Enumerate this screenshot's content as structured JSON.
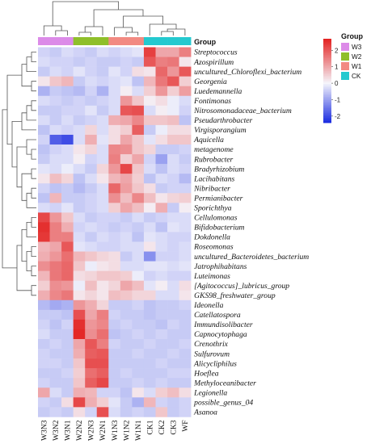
{
  "chart_data": {
    "type": "heatmap",
    "columns": [
      "W3N3",
      "W3N2",
      "W3N1",
      "W2N2",
      "W2N3",
      "W2N1",
      "W1N3",
      "W1N2",
      "W1N1",
      "CK1",
      "CK2",
      "CK3",
      "WF"
    ],
    "rows": [
      "Streptococcus",
      "Azospirillum",
      "uncultured_Chloroflexi_bacterium",
      "Georgenia",
      "Luedemannella",
      "Fontimonas",
      "Nitrosomonadaceae_bacterium",
      "Pseudarthrobacter",
      "Virgisporangium",
      "Aquicella",
      "metagenome",
      "Rubrobacter",
      "Bradyrhizobium",
      "Lacihabitans",
      "Nibribacter",
      "Permianibacter",
      "Sporichthya",
      "Cellulomonas",
      "Bifidobacterium",
      "Dokdonella",
      "Roseomonas",
      "uncultured_Bacteroidetes_bacterium",
      "Jatrophihabitans",
      "Luteimonas",
      "[Agitococcus]_lubricus_group",
      "GKS98_freshwater_group",
      "Ideonella",
      "Catellatospora",
      "Immundisolibacter",
      "Capnocytophaga",
      "Crenothrix",
      "Sulfurovum",
      "Alicycliphilus",
      "Hoeflea",
      "Methyloceanibacter",
      "Legionella",
      "possible_genus_04",
      "Asanoa"
    ],
    "values": [
      [
        -0.4,
        -0.5,
        -0.3,
        -0.4,
        -0.5,
        -0.3,
        -0.4,
        -0.3,
        -0.2,
        2.3,
        1.0,
        1.0,
        1.5
      ],
      [
        -0.3,
        -0.4,
        -0.4,
        -0.5,
        -0.4,
        -0.5,
        -0.5,
        -0.4,
        -0.5,
        2.0,
        1.5,
        1.6,
        0.2
      ],
      [
        -0.5,
        -0.3,
        -0.4,
        -0.2,
        -0.4,
        -0.5,
        -0.2,
        -0.4,
        0.3,
        0.2,
        1.8,
        1.2,
        2.0
      ],
      [
        0.2,
        0.6,
        0.8,
        -0.5,
        -0.3,
        -0.4,
        -0.3,
        -0.2,
        -0.6,
        0.8,
        1.6,
        2.0,
        0.5
      ],
      [
        -0.8,
        -0.5,
        -0.6,
        -0.7,
        -0.4,
        -0.8,
        -0.3,
        0.1,
        -0.3,
        0.5,
        1.2,
        0.5,
        1.1
      ],
      [
        -0.3,
        -0.4,
        -0.5,
        -0.4,
        -0.5,
        -0.4,
        -0.3,
        1.2,
        0.6,
        0.1,
        0.3,
        -0.1,
        -0.3
      ],
      [
        -0.5,
        -0.5,
        -0.4,
        -0.4,
        -0.2,
        -0.5,
        -0.3,
        2.0,
        2.1,
        -0.3,
        0.1,
        -0.1,
        -0.4
      ],
      [
        -0.3,
        -0.5,
        -0.3,
        -0.5,
        -0.4,
        -0.3,
        0.9,
        1.0,
        1.4,
        0.6,
        0.6,
        0.7,
        -0.6
      ],
      [
        -0.6,
        -0.3,
        -0.4,
        -0.3,
        0.4,
        -0.3,
        0.3,
        0.5,
        1.9,
        -0.5,
        -0.1,
        0.3,
        0.3
      ],
      [
        -0.4,
        -1.8,
        -2.0,
        -0.3,
        0.9,
        -0.2,
        0.3,
        1.0,
        0.6,
        -0.2,
        0.3,
        0.6,
        0.6
      ],
      [
        -0.6,
        -0.4,
        -0.3,
        0.2,
        0.4,
        -0.3,
        1.4,
        1.3,
        0.6,
        0.4,
        -0.5,
        -0.5,
        -0.4
      ],
      [
        -0.5,
        -0.3,
        -0.3,
        0.1,
        -0.4,
        -0.3,
        1.5,
        0.5,
        1.0,
        -0.4,
        -1.0,
        -0.3,
        -0.5
      ],
      [
        -0.2,
        -0.3,
        -0.1,
        -0.3,
        -0.5,
        0.4,
        1.2,
        2.2,
        0.6,
        -0.3,
        -0.6,
        -0.3,
        -0.4
      ],
      [
        0.2,
        0.7,
        0.4,
        -0.6,
        -0.3,
        0.2,
        0.8,
        1.0,
        0.5,
        -0.6,
        -0.3,
        -0.4,
        -0.7
      ],
      [
        -0.4,
        -0.6,
        -0.5,
        -0.7,
        -0.5,
        -0.3,
        1.8,
        1.1,
        0.6,
        0.3,
        -0.5,
        -0.4,
        -0.4
      ],
      [
        -0.6,
        0.8,
        -0.5,
        -0.5,
        -0.4,
        -0.3,
        1.3,
        0.7,
        1.4,
        0.7,
        0.2,
        0.4,
        0.5
      ],
      [
        -0.3,
        -0.4,
        -0.2,
        -0.5,
        -0.4,
        -0.3,
        0.5,
        1.0,
        0.7,
        0.1,
        0.9,
        -0.5,
        0.1
      ],
      [
        2.2,
        1.2,
        0.6,
        -0.3,
        -0.5,
        -0.4,
        -0.4,
        -0.5,
        -0.3,
        -0.5,
        -0.4,
        -0.3,
        -0.3
      ],
      [
        2.5,
        1.5,
        0.9,
        -0.4,
        -0.3,
        -0.4,
        -0.5,
        -0.4,
        -0.5,
        -0.3,
        -0.6,
        -0.2,
        -0.3
      ],
      [
        2.4,
        1.5,
        1.5,
        -0.3,
        -0.5,
        -0.3,
        -0.4,
        -0.3,
        -0.6,
        -0.2,
        -0.3,
        -0.4,
        -0.4
      ],
      [
        0.8,
        1.0,
        2.0,
        -0.2,
        -0.3,
        -0.4,
        -0.4,
        -0.3,
        -0.3,
        0.2,
        -0.3,
        -0.4,
        -0.3
      ],
      [
        0.9,
        1.2,
        1.7,
        0.8,
        0.6,
        0.4,
        0.3,
        -0.5,
        -0.3,
        -1.2,
        -0.4,
        -0.4,
        -0.3
      ],
      [
        1.3,
        1.6,
        1.8,
        0.6,
        -0.1,
        0.2,
        0.3,
        -0.3,
        -0.3,
        -0.2,
        -0.2,
        -0.3,
        -0.2
      ],
      [
        0.8,
        1.6,
        1.8,
        0.3,
        0.4,
        0.6,
        0.6,
        0.5,
        -0.1,
        -0.4,
        -0.3,
        -0.4,
        -0.4
      ],
      [
        0.5,
        1.3,
        1.2,
        -0.1,
        0.7,
        0.2,
        0.4,
        1.0,
        0.7,
        -0.2,
        0.1,
        -0.3,
        0.3
      ],
      [
        0.9,
        1.4,
        1.6,
        0.2,
        0.4,
        0.2,
        0.7,
        0.6,
        0.4,
        0.4,
        -0.3,
        -0.3,
        0.2
      ],
      [
        -0.7,
        -0.9,
        -0.8,
        1.2,
        0.9,
        0.4,
        -0.5,
        -0.5,
        -0.4,
        -0.6,
        -0.5,
        -0.5,
        -0.4
      ],
      [
        -0.5,
        -0.5,
        -0.6,
        2.1,
        1.0,
        1.5,
        -0.4,
        -0.5,
        -0.5,
        -0.6,
        -0.5,
        -0.5,
        -0.5
      ],
      [
        -0.4,
        -0.6,
        -0.4,
        2.5,
        1.2,
        1.4,
        -0.5,
        -0.4,
        -0.5,
        -0.5,
        -0.6,
        -0.4,
        -0.5
      ],
      [
        -0.3,
        -0.5,
        -0.5,
        2.6,
        1.3,
        1.7,
        -0.6,
        -0.5,
        -0.4,
        -0.5,
        -0.4,
        -0.5,
        -0.5
      ],
      [
        -0.5,
        -0.4,
        -0.5,
        1.0,
        2.0,
        1.5,
        -0.4,
        -0.5,
        -0.5,
        -0.4,
        -0.5,
        -0.5,
        -0.4
      ],
      [
        -0.4,
        -0.5,
        -0.5,
        0.9,
        1.9,
        2.0,
        -0.5,
        -0.5,
        -0.4,
        -0.5,
        -0.5,
        -0.4,
        -0.5
      ],
      [
        -0.4,
        -0.4,
        -0.5,
        0.6,
        2.1,
        2.1,
        -0.5,
        -0.5,
        -0.5,
        -0.5,
        -0.4,
        -0.5,
        -0.5
      ],
      [
        -0.5,
        -0.5,
        -0.4,
        0.5,
        1.7,
        1.9,
        -0.5,
        -0.4,
        -0.5,
        -0.5,
        -0.5,
        -0.4,
        -0.4
      ],
      [
        -0.4,
        -0.5,
        -0.5,
        0.6,
        1.9,
        2.2,
        -0.5,
        -0.5,
        -0.4,
        -0.5,
        -0.4,
        -0.5,
        -0.5
      ],
      [
        1.0,
        -0.3,
        -0.5,
        0.9,
        0.8,
        -0.4,
        -0.4,
        -0.6,
        0.2,
        -0.3,
        0.5,
        0.7,
        0.3
      ],
      [
        -0.4,
        -0.5,
        0.3,
        2.2,
        0.9,
        0.5,
        -0.2,
        -0.5,
        -0.8,
        0.8,
        -0.4,
        -0.5,
        -0.4
      ],
      [
        -0.5,
        -0.4,
        -0.5,
        0.3,
        -0.4,
        2.1,
        -0.3,
        -0.5,
        -0.4,
        -0.5,
        0.6,
        -0.5,
        -0.4
      ]
    ],
    "column_groups": [
      "W3",
      "W3",
      "W3",
      "W2",
      "W2",
      "W2",
      "W1",
      "W1",
      "W1",
      "CK",
      "CK",
      "CK",
      "CK"
    ],
    "annotation_label": "Group",
    "legend": {
      "title": "Group",
      "entries": [
        {
          "name": "W3",
          "color": "#dc8be8"
        },
        {
          "name": "W2",
          "color": "#8fbf2a"
        },
        {
          "name": "W1",
          "color": "#f28a82"
        },
        {
          "name": "CK",
          "color": "#24c9cf"
        }
      ]
    },
    "colorbar": {
      "ticks": [
        2,
        1,
        0,
        -1,
        -2
      ],
      "range": [
        -2.4,
        2.7
      ],
      "colors": {
        "low": "#1a2be0",
        "mid": "#f5f5fb",
        "high": "#e3201f"
      }
    }
  }
}
